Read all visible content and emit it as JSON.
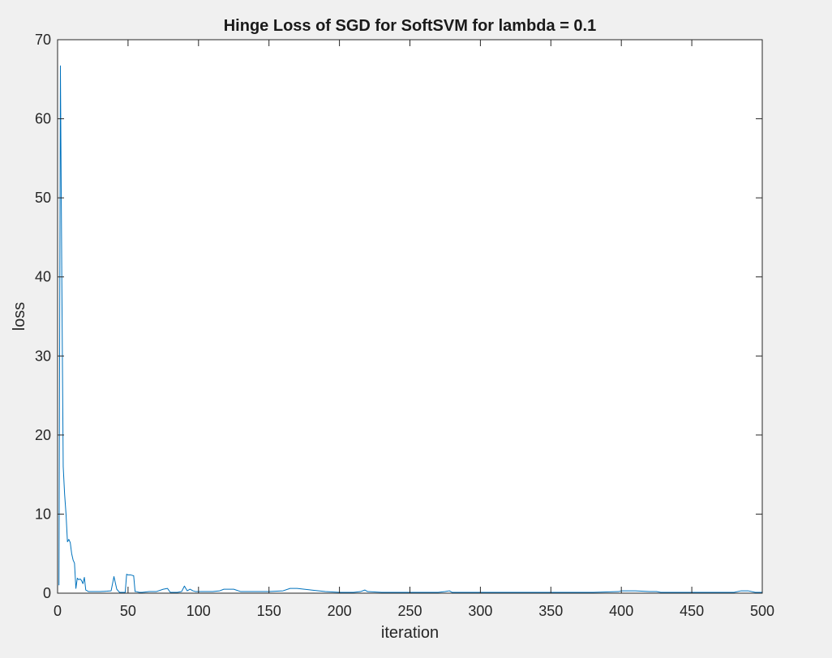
{
  "chart_data": {
    "type": "line",
    "title": "Hinge Loss of SGD for SoftSVM for lambda = 0.1",
    "xlabel": "iteration",
    "ylabel": "loss",
    "xlim": [
      0,
      500
    ],
    "ylim": [
      0,
      70
    ],
    "xticks": [
      0,
      50,
      100,
      150,
      200,
      250,
      300,
      350,
      400,
      450,
      500
    ],
    "yticks": [
      0,
      10,
      20,
      30,
      40,
      50,
      60,
      70
    ],
    "grid": false,
    "legend": "none",
    "series": [
      {
        "color": "#0072bd",
        "x": [
          1,
          2,
          3,
          4,
          5,
          6,
          7,
          8,
          9,
          10,
          11,
          12,
          13,
          14,
          15,
          16,
          17,
          18,
          19,
          20,
          21,
          22,
          23,
          25,
          30,
          35,
          38,
          40,
          42,
          44,
          46,
          48,
          49,
          50,
          52,
          54,
          55,
          56,
          58,
          60,
          65,
          70,
          75,
          78,
          80,
          82,
          85,
          88,
          90,
          92,
          94,
          96,
          98,
          100,
          105,
          110,
          115,
          118,
          120,
          125,
          130,
          135,
          140,
          150,
          160,
          165,
          170,
          175,
          180,
          190,
          200,
          210,
          215,
          218,
          220,
          230,
          240,
          250,
          270,
          275,
          278,
          280,
          290,
          300,
          320,
          350,
          380,
          398,
          400,
          405,
          410,
          420,
          425,
          428,
          430,
          435,
          440,
          450,
          460,
          470,
          480,
          485,
          490,
          495,
          500
        ],
        "y": [
          1.0,
          66.7,
          40.0,
          16.0,
          12.5,
          10.0,
          6.5,
          6.8,
          6.4,
          5.0,
          4.2,
          3.8,
          0.6,
          1.9,
          1.7,
          1.8,
          1.6,
          1.2,
          2.0,
          0.4,
          0.3,
          0.2,
          0.2,
          0.2,
          0.2,
          0.25,
          0.3,
          2.1,
          0.5,
          0.1,
          0.1,
          0.1,
          2.4,
          2.3,
          2.3,
          2.2,
          0.2,
          0.2,
          0.1,
          0.1,
          0.2,
          0.2,
          0.5,
          0.6,
          0.1,
          0.1,
          0.1,
          0.2,
          0.9,
          0.3,
          0.5,
          0.3,
          0.2,
          0.2,
          0.2,
          0.2,
          0.3,
          0.5,
          0.5,
          0.5,
          0.2,
          0.2,
          0.2,
          0.2,
          0.3,
          0.6,
          0.6,
          0.5,
          0.4,
          0.2,
          0.1,
          0.1,
          0.2,
          0.4,
          0.2,
          0.1,
          0.1,
          0.1,
          0.1,
          0.2,
          0.3,
          0.1,
          0.1,
          0.1,
          0.1,
          0.1,
          0.1,
          0.2,
          0.3,
          0.3,
          0.3,
          0.2,
          0.2,
          0.1,
          0.1,
          0.1,
          0.1,
          0.1,
          0.1,
          0.1,
          0.1,
          0.3,
          0.3,
          0.1,
          0.1
        ]
      }
    ]
  }
}
